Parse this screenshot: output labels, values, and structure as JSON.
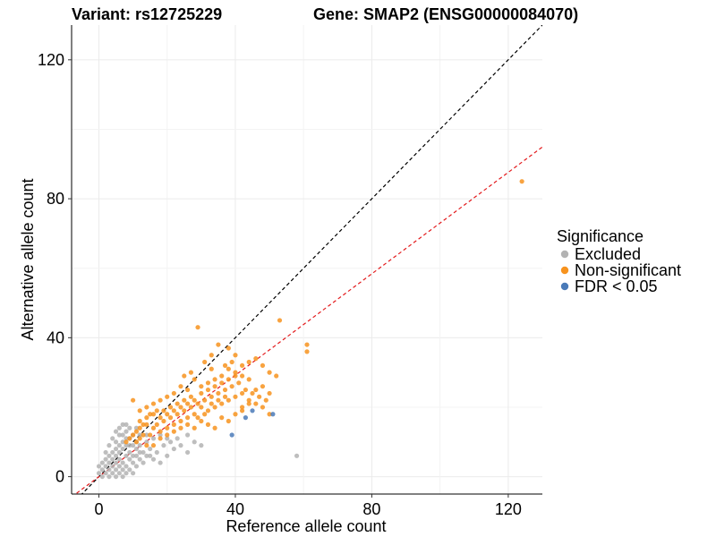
{
  "chart_data": {
    "type": "scatter",
    "title_variant": "Variant: rs12725229",
    "title_gene": "Gene: SMAP2 (ENSG00000084070)",
    "xlabel": "Reference allele count",
    "ylabel": "Alternative allele count",
    "xlim": [
      -8,
      130
    ],
    "ylim": [
      -5,
      130
    ],
    "xticks": [
      0,
      40,
      80,
      120
    ],
    "yticks": [
      0,
      40,
      80,
      120
    ],
    "grid": true,
    "legend": {
      "title": "Significance",
      "placement": "right",
      "entries": [
        {
          "label": "Excluded",
          "color": "#b3b3b3"
        },
        {
          "label": "Non-significant",
          "color": "#f7931e"
        },
        {
          "label": "FDR < 0.05",
          "color": "#4a7ab8"
        }
      ]
    },
    "reference_lines": [
      {
        "slope": 1.0,
        "intercept": 0,
        "color": "#000000",
        "style": "dashed"
      },
      {
        "slope": 0.73,
        "intercept": 0,
        "color": "#e31a1c",
        "style": "dashed"
      }
    ],
    "series": [
      {
        "name": "Excluded",
        "color": "#b3b3b3",
        "points": [
          [
            0,
            1
          ],
          [
            0,
            3
          ],
          [
            1,
            0
          ],
          [
            1,
            2
          ],
          [
            1,
            4
          ],
          [
            2,
            1
          ],
          [
            2,
            3
          ],
          [
            2,
            5
          ],
          [
            3,
            0
          ],
          [
            3,
            2
          ],
          [
            3,
            4
          ],
          [
            3,
            6
          ],
          [
            4,
            1
          ],
          [
            4,
            3
          ],
          [
            4,
            5
          ],
          [
            4,
            7
          ],
          [
            5,
            0
          ],
          [
            5,
            2
          ],
          [
            5,
            4
          ],
          [
            5,
            6
          ],
          [
            5,
            8
          ],
          [
            5,
            13
          ],
          [
            6,
            1
          ],
          [
            6,
            3
          ],
          [
            6,
            5
          ],
          [
            6,
            9
          ],
          [
            6,
            12
          ],
          [
            7,
            0
          ],
          [
            7,
            2
          ],
          [
            7,
            4
          ],
          [
            7,
            8
          ],
          [
            7,
            10
          ],
          [
            7,
            15
          ],
          [
            8,
            1
          ],
          [
            8,
            3
          ],
          [
            8,
            6
          ],
          [
            8,
            11
          ],
          [
            8,
            13
          ],
          [
            9,
            2
          ],
          [
            9,
            5
          ],
          [
            9,
            7
          ],
          [
            9,
            9
          ],
          [
            10,
            1
          ],
          [
            10,
            4
          ],
          [
            10,
            6
          ],
          [
            10,
            12
          ],
          [
            11,
            3
          ],
          [
            11,
            8
          ],
          [
            11,
            10
          ],
          [
            12,
            5
          ],
          [
            12,
            9
          ],
          [
            13,
            4
          ],
          [
            13,
            7
          ],
          [
            14,
            6
          ],
          [
            15,
            8
          ],
          [
            16,
            5
          ],
          [
            17,
            7
          ],
          [
            18,
            4
          ],
          [
            19,
            9
          ],
          [
            20,
            6
          ],
          [
            21,
            10
          ],
          [
            22,
            8
          ],
          [
            24,
            9
          ],
          [
            26,
            7
          ],
          [
            28,
            10
          ],
          [
            30,
            9
          ],
          [
            26,
            12
          ],
          [
            23,
            11
          ],
          [
            5,
            10
          ],
          [
            7,
            12
          ],
          [
            3,
            9
          ],
          [
            2,
            7
          ],
          [
            58,
            6
          ],
          [
            4,
            11
          ],
          [
            6,
            14
          ],
          [
            8,
            15
          ],
          [
            9,
            14
          ],
          [
            11,
            14
          ],
          [
            12,
            12
          ],
          [
            14,
            10
          ],
          [
            16,
            11
          ],
          [
            18,
            12
          ],
          [
            20,
            11
          ],
          [
            10,
            9
          ],
          [
            12,
            7
          ],
          [
            14,
            12
          ],
          [
            15,
            6
          ],
          [
            6,
            7
          ],
          [
            8,
            9
          ],
          [
            9,
            11
          ],
          [
            11,
            6
          ]
        ]
      },
      {
        "name": "Non-significant",
        "color": "#f7931e",
        "points": [
          [
            124,
            85
          ],
          [
            61,
            36
          ],
          [
            61,
            38
          ],
          [
            53,
            45
          ],
          [
            29,
            43
          ],
          [
            33,
            35
          ],
          [
            35,
            38
          ],
          [
            37,
            32
          ],
          [
            38,
            37
          ],
          [
            40,
            35
          ],
          [
            42,
            32
          ],
          [
            44,
            33
          ],
          [
            46,
            34
          ],
          [
            48,
            32
          ],
          [
            50,
            30
          ],
          [
            52,
            29
          ],
          [
            48,
            26
          ],
          [
            50,
            24
          ],
          [
            46,
            25
          ],
          [
            44,
            28
          ],
          [
            42,
            29
          ],
          [
            40,
            30
          ],
          [
            38,
            31
          ],
          [
            36,
            29
          ],
          [
            34,
            28
          ],
          [
            32,
            27
          ],
          [
            30,
            26
          ],
          [
            28,
            28
          ],
          [
            26,
            25
          ],
          [
            24,
            26
          ],
          [
            22,
            24
          ],
          [
            20,
            23
          ],
          [
            18,
            22
          ],
          [
            16,
            21
          ],
          [
            14,
            20
          ],
          [
            12,
            19
          ],
          [
            10,
            22
          ],
          [
            12,
            16
          ],
          [
            14,
            15
          ],
          [
            16,
            14
          ],
          [
            18,
            13
          ],
          [
            20,
            12
          ],
          [
            22,
            13
          ],
          [
            24,
            14
          ],
          [
            26,
            15
          ],
          [
            28,
            14
          ],
          [
            30,
            16
          ],
          [
            32,
            15
          ],
          [
            34,
            14
          ],
          [
            36,
            17
          ],
          [
            38,
            16
          ],
          [
            40,
            18
          ],
          [
            42,
            19
          ],
          [
            44,
            22
          ],
          [
            46,
            21
          ],
          [
            48,
            20
          ],
          [
            50,
            18
          ],
          [
            32,
            19
          ],
          [
            30,
            20
          ],
          [
            28,
            22
          ],
          [
            26,
            21
          ],
          [
            24,
            20
          ],
          [
            22,
            19
          ],
          [
            20,
            18
          ],
          [
            18,
            17
          ],
          [
            16,
            18
          ],
          [
            14,
            17
          ],
          [
            12,
            14
          ],
          [
            10,
            12
          ],
          [
            9,
            11
          ],
          [
            8,
            10
          ],
          [
            11,
            10
          ],
          [
            13,
            12
          ],
          [
            15,
            12
          ],
          [
            17,
            15
          ],
          [
            19,
            16
          ],
          [
            21,
            17
          ],
          [
            23,
            18
          ],
          [
            25,
            19
          ],
          [
            27,
            20
          ],
          [
            29,
            21
          ],
          [
            31,
            22
          ],
          [
            33,
            23
          ],
          [
            35,
            24
          ],
          [
            37,
            25
          ],
          [
            39,
            26
          ],
          [
            41,
            27
          ],
          [
            43,
            25
          ],
          [
            45,
            24
          ],
          [
            47,
            23
          ],
          [
            49,
            22
          ],
          [
            34,
            20
          ],
          [
            36,
            21
          ],
          [
            38,
            22
          ],
          [
            40,
            23
          ],
          [
            42,
            24
          ],
          [
            28,
            18
          ],
          [
            26,
            17
          ],
          [
            24,
            16
          ],
          [
            22,
            15
          ],
          [
            20,
            14
          ],
          [
            18,
            11
          ],
          [
            16,
            9
          ],
          [
            14,
            9
          ],
          [
            12,
            11
          ],
          [
            30,
            24
          ],
          [
            32,
            25
          ],
          [
            34,
            26
          ],
          [
            36,
            27
          ],
          [
            38,
            28
          ],
          [
            40,
            29
          ],
          [
            33,
            21
          ],
          [
            35,
            22
          ],
          [
            37,
            23
          ],
          [
            29,
            17
          ],
          [
            31,
            18
          ],
          [
            25,
            22
          ],
          [
            27,
            23
          ],
          [
            23,
            21
          ],
          [
            21,
            20
          ],
          [
            19,
            19
          ],
          [
            17,
            19
          ],
          [
            15,
            18
          ],
          [
            13,
            15
          ],
          [
            11,
            13
          ],
          [
            42,
            20
          ],
          [
            44,
            21
          ],
          [
            25,
            29
          ],
          [
            27,
            30
          ],
          [
            31,
            33
          ],
          [
            33,
            31
          ],
          [
            39,
            33
          ]
        ]
      },
      {
        "name": "FDR < 0.05",
        "color": "#4a7ab8",
        "points": [
          [
            39,
            12
          ],
          [
            43,
            17
          ],
          [
            45,
            19
          ],
          [
            51,
            18
          ]
        ]
      }
    ]
  }
}
